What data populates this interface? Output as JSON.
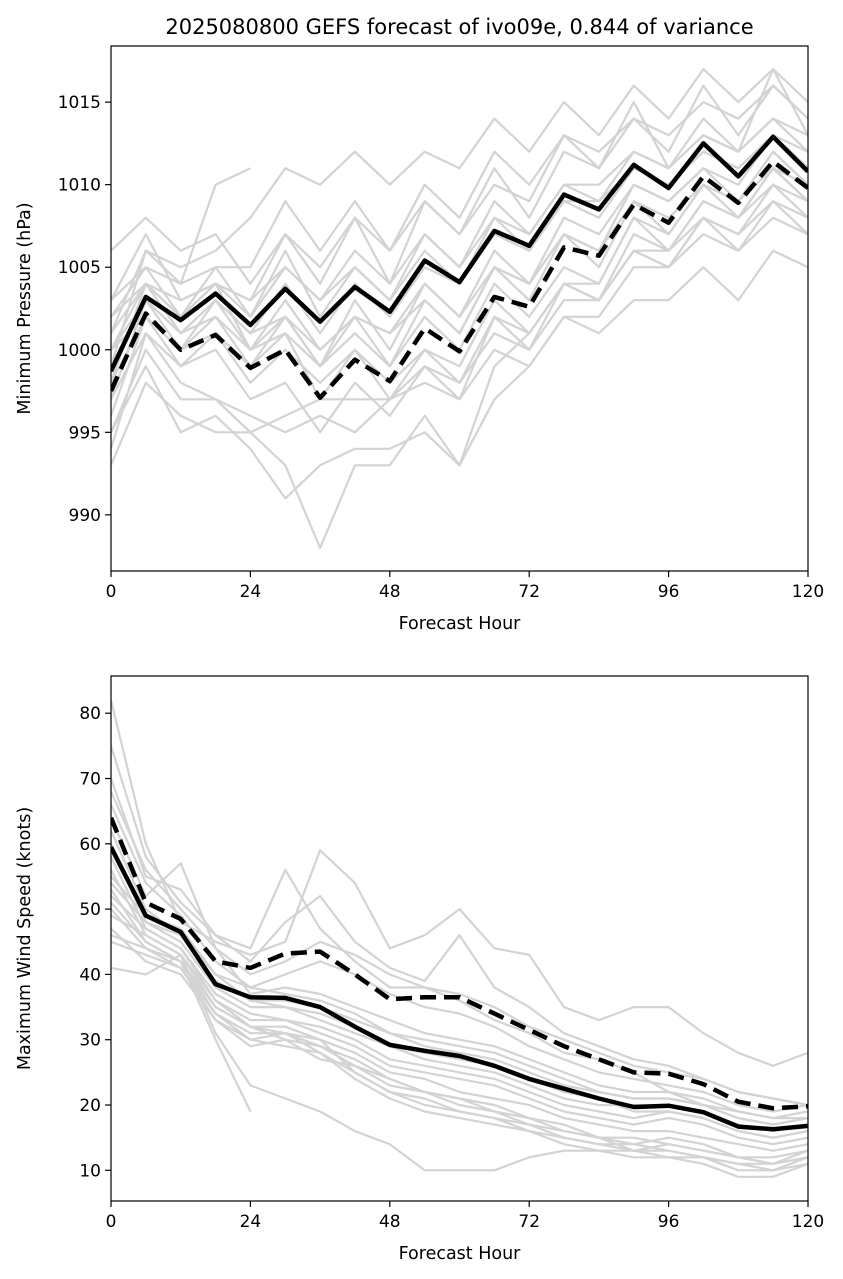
{
  "chart_data": [
    {
      "type": "line",
      "title": "2025080800 GEFS forecast of ivo09e, 0.844 of variance",
      "xlabel": "Forecast Hour",
      "ylabel": "Minimum Pressure (hPa)",
      "xlim": [
        0,
        120
      ],
      "ylim": [
        986.6,
        1018.4
      ],
      "xticks": [
        0,
        24,
        48,
        72,
        96,
        120
      ],
      "yticks": [
        990,
        995,
        1000,
        1005,
        1010,
        1015
      ],
      "x": [
        0,
        6,
        12,
        18,
        24,
        30,
        36,
        42,
        48,
        54,
        60,
        66,
        72,
        78,
        84,
        90,
        96,
        102,
        108,
        114,
        120
      ],
      "series": [
        {
          "style": "mean",
          "values": [
            998.7,
            1003.2,
            1001.8,
            1003.4,
            1001.5,
            1003.7,
            1001.7,
            1003.8,
            1002.3,
            1005.4,
            1004.1,
            1007.2,
            1006.3,
            1009.4,
            1008.5,
            1011.2,
            1009.8,
            1012.5,
            1010.5,
            1012.9,
            1010.8
          ]
        },
        {
          "style": "dashed",
          "values": [
            997.5,
            1002.2,
            1000.0,
            1000.9,
            998.9,
            1000.0,
            997.1,
            999.4,
            998.1,
            1001.3,
            999.9,
            1003.2,
            1002.6,
            1006.2,
            1005.7,
            1008.8,
            1007.7,
            1010.5,
            1008.9,
            1011.4,
            1009.8
          ]
        }
      ],
      "members": [
        [
          1006,
          1008,
          1006,
          1007,
          1004,
          1007,
          1005,
          1008,
          1006,
          1010,
          1008,
          1012,
          1010,
          1013,
          1012,
          1014,
          1013,
          1015,
          1014,
          1016,
          1014
        ],
        [
          1003,
          1005,
          1004,
          1010,
          1011
        ],
        [
          1003,
          1007,
          1003,
          1004,
          1003,
          1007,
          1004,
          1008,
          1004,
          1009,
          1007,
          1011,
          1008,
          1012,
          1011,
          1015,
          1011,
          1014,
          1012,
          1017,
          1013
        ],
        [
          1002,
          1005,
          1002,
          1004,
          1000,
          1003,
          1000,
          1002,
          1001,
          1004,
          1002,
          1006,
          1004,
          1008,
          1007,
          1010,
          1009,
          1011,
          1010,
          1013,
          1011
        ],
        [
          1001,
          1004,
          1001,
          1002,
          999,
          1002,
          999,
          1002,
          999,
          1003,
          1001,
          1005,
          1003,
          1007,
          1006,
          1009,
          1008,
          1010,
          1009,
          1012,
          1010
        ],
        [
          1000,
          1003,
          1001,
          1003,
          1001,
          1004,
          1001,
          1004,
          1002,
          1005,
          1004,
          1007,
          1006,
          1009,
          1008,
          1011,
          1010,
          1012,
          1011,
          1013,
          1011
        ],
        [
          1000,
          1002,
          999,
          1001,
          999,
          1001,
          997,
          1000,
          997,
          1000,
          998,
          1002,
          1000,
          1004,
          1003,
          1006,
          1005,
          1008,
          1007,
          1010,
          1008
        ],
        [
          999,
          1003,
          1000,
          1002,
          1000,
          1002,
          999,
          1001,
          999,
          1002,
          1000,
          1004,
          1002,
          1005,
          1004,
          1008,
          1006,
          1009,
          1008,
          1011,
          1009
        ],
        [
          998,
          1004,
          1002,
          1005,
          1002,
          1006,
          1002,
          1005,
          1003,
          1007,
          1005,
          1009,
          1007,
          1010,
          1009,
          1012,
          1011,
          1013,
          1012,
          1014,
          1012
        ],
        [
          997,
          1001,
          998,
          997,
          995,
          993,
          988,
          993,
          993,
          996,
          993,
          999,
          1001,
          1004,
          1004,
          1008,
          1007,
          1010,
          1008,
          1011,
          1009
        ],
        [
          995,
          999,
          995,
          996,
          994,
          991,
          993,
          994,
          994,
          995,
          993,
          997,
          999,
          1002,
          1002,
          1005,
          1005,
          1008,
          1006,
          1009,
          1008
        ],
        [
          995,
          1000,
          997,
          997,
          996,
          995,
          996,
          995,
          997,
          999,
          998,
          1001,
          1000,
          1003,
          1003,
          1006,
          1006,
          1009,
          1008,
          1010,
          1009
        ],
        [
          993,
          998,
          996,
          995,
          995,
          996,
          997,
          997,
          997,
          998,
          997,
          1000,
          999,
          1002,
          1001,
          1003,
          1003,
          1005,
          1003,
          1006,
          1005
        ],
        [
          994,
          1001,
          999,
          1000,
          997,
          998,
          995,
          998,
          996,
          999,
          997,
          1002,
          1001,
          1004,
          1003,
          1007,
          1006,
          1008,
          1007,
          1009,
          1007
        ],
        [
          996,
          1002,
          1000,
          1003,
          1000,
          1001,
          999,
          1003,
          1000,
          1004,
          1002,
          1005,
          1004,
          1007,
          1006,
          1010,
          1009,
          1011,
          1009,
          1012,
          1010
        ],
        [
          997,
          1003,
          1001,
          1003,
          1001,
          1002,
          1000,
          1002,
          1001,
          1003,
          1001,
          1005,
          1004,
          1007,
          1005,
          1009,
          1007,
          1010,
          1009,
          1011,
          1010
        ],
        [
          999,
          1006,
          1004,
          1005,
          1005,
          1009,
          1006,
          1009,
          1006,
          1009,
          1007,
          1010,
          1009,
          1013,
          1011,
          1014,
          1012,
          1016,
          1013,
          1016,
          1014
        ],
        [
          1001,
          1006,
          1005,
          1006,
          1008,
          1011,
          1010,
          1012,
          1010,
          1012,
          1011,
          1014,
          1012,
          1015,
          1013,
          1016,
          1014,
          1017,
          1015,
          1017,
          1015
        ],
        [
          1002,
          1004,
          1003,
          1004,
          1002,
          1005,
          1003,
          1006,
          1004,
          1007,
          1005,
          1008,
          1007,
          1010,
          1010,
          1012,
          1011,
          1013,
          1012,
          1014,
          1013
        ],
        [
          1000,
          1004,
          1002,
          1004,
          1003,
          1005,
          1003,
          1005,
          1003,
          1006,
          1004,
          1008,
          1006,
          1009,
          1009,
          1011,
          1010,
          1012,
          1011,
          1013,
          1012
        ],
        [
          998,
          1002,
          1000,
          1001,
          998,
          1000,
          998,
          1000,
          998,
          1000,
          999,
          1003,
          1001,
          1004,
          1003,
          1006,
          1005,
          1007,
          1006,
          1008,
          1007
        ]
      ]
    },
    {
      "type": "line",
      "title": "",
      "xlabel": "Forecast Hour",
      "ylabel": "Maximum Wind Speed (knots)",
      "xlim": [
        0,
        120
      ],
      "ylim": [
        5.3,
        85.7
      ],
      "xticks": [
        0,
        24,
        48,
        72,
        96,
        120
      ],
      "yticks": [
        10,
        20,
        30,
        40,
        50,
        60,
        70,
        80
      ],
      "x": [
        0,
        6,
        12,
        18,
        24,
        30,
        36,
        42,
        48,
        54,
        60,
        66,
        72,
        78,
        84,
        90,
        96,
        102,
        108,
        114,
        120
      ],
      "series": [
        {
          "style": "mean",
          "values": [
            59.5,
            49.0,
            46.5,
            38.5,
            36.5,
            36.4,
            35.0,
            32.0,
            29.2,
            28.3,
            27.5,
            26.0,
            24.0,
            22.5,
            21.0,
            19.7,
            19.9,
            18.9,
            16.7,
            16.3,
            16.8
          ]
        },
        {
          "style": "dashed",
          "values": [
            64.0,
            51.0,
            48.5,
            42.0,
            41.0,
            43.2,
            43.5,
            40.0,
            36.2,
            36.5,
            36.5,
            34.0,
            31.5,
            29.0,
            27.0,
            25.0,
            24.8,
            23.2,
            20.5,
            19.5,
            19.8
          ]
        }
      ],
      "members": [
        [
          82,
          60,
          48,
          45,
          43,
          45,
          59,
          54,
          44,
          46,
          50,
          44,
          43,
          35,
          33,
          35,
          35,
          31,
          28,
          26,
          28
        ],
        [
          75,
          58,
          51,
          46,
          44,
          56,
          47,
          42,
          38,
          38,
          36,
          33,
          31,
          28,
          27,
          25,
          22,
          20,
          19,
          18,
          18
        ],
        [
          70,
          55,
          53,
          46,
          42,
          48,
          52,
          45,
          41,
          39,
          46,
          38,
          35,
          31,
          29,
          27,
          26,
          24,
          22,
          21,
          20
        ],
        [
          68,
          56,
          50,
          44,
          40,
          42,
          45,
          43,
          40,
          38,
          37,
          35,
          32,
          30,
          28,
          26,
          25,
          24,
          22,
          21,
          20
        ],
        [
          66,
          54,
          49,
          42,
          38,
          40,
          42,
          40,
          37,
          35,
          34,
          32,
          29,
          27,
          25,
          24,
          23,
          22,
          20,
          19,
          20
        ],
        [
          64,
          52,
          57,
          44,
          37,
          38,
          37,
          35,
          33,
          31,
          30,
          29,
          27,
          25,
          23,
          22,
          22,
          21,
          19,
          18,
          19
        ],
        [
          62,
          50,
          46,
          40,
          36,
          36,
          35,
          33,
          31,
          29,
          28,
          27,
          25,
          23,
          22,
          21,
          21,
          20,
          18,
          17,
          18
        ],
        [
          60,
          48,
          45,
          38,
          35,
          35,
          33,
          31,
          29,
          27,
          26,
          25,
          23,
          21,
          20,
          20,
          20,
          19,
          17,
          16,
          17
        ],
        [
          58,
          47,
          44,
          37,
          34,
          33,
          32,
          30,
          27,
          26,
          25,
          24,
          22,
          20,
          19,
          18,
          19,
          18,
          16,
          15,
          16
        ],
        [
          56,
          46,
          43,
          36,
          33,
          33,
          31,
          29,
          26,
          25,
          24,
          23,
          21,
          19,
          18,
          17,
          18,
          17,
          15,
          14,
          15
        ],
        [
          55,
          49,
          47,
          40,
          38,
          37,
          36,
          34,
          31,
          30,
          29,
          28,
          26,
          24,
          22,
          21,
          21,
          20,
          18,
          17,
          18
        ],
        [
          54,
          48,
          46,
          39,
          36,
          35,
          34,
          32,
          29,
          28,
          27,
          26,
          24,
          22,
          21,
          19,
          19,
          18,
          16,
          15,
          16
        ],
        [
          53,
          45,
          42,
          35,
          32,
          32,
          30,
          28,
          25,
          24,
          22,
          21,
          20,
          18,
          17,
          16,
          16,
          15,
          14,
          13,
          14
        ],
        [
          52,
          47,
          44,
          36,
          32,
          30,
          29,
          27,
          24,
          22,
          21,
          20,
          18,
          17,
          15,
          14,
          15,
          14,
          12,
          12,
          13
        ],
        [
          50,
          44,
          41,
          34,
          31,
          31,
          29,
          26,
          23,
          22,
          20,
          19,
          17,
          16,
          15,
          13,
          14,
          13,
          12,
          11,
          12
        ],
        [
          49,
          46,
          43,
          35,
          32,
          31,
          30,
          25,
          22,
          20,
          19,
          18,
          17,
          15,
          14,
          14,
          13,
          12,
          11,
          11,
          12
        ],
        [
          47,
          42,
          40,
          33,
          30,
          29,
          28,
          24,
          21,
          19,
          18,
          17,
          16,
          14,
          13,
          13,
          12,
          12,
          10,
          10,
          11
        ],
        [
          46,
          44,
          42,
          34,
          30,
          31,
          28,
          25,
          22,
          21,
          19,
          18,
          16,
          15,
          14,
          13,
          13,
          12,
          11,
          10,
          12
        ],
        [
          45,
          43,
          41,
          33,
          29,
          30,
          27,
          26,
          24,
          22,
          21,
          19,
          18,
          16,
          15,
          15,
          14,
          13,
          12,
          11,
          13
        ],
        [
          41,
          40,
          43,
          31,
          23,
          21,
          19,
          16,
          14,
          10,
          10,
          10,
          12,
          13,
          13,
          12,
          12,
          11,
          9,
          9,
          11
        ],
        [
          51,
          45,
          42,
          30,
          19
        ]
      ]
    }
  ]
}
